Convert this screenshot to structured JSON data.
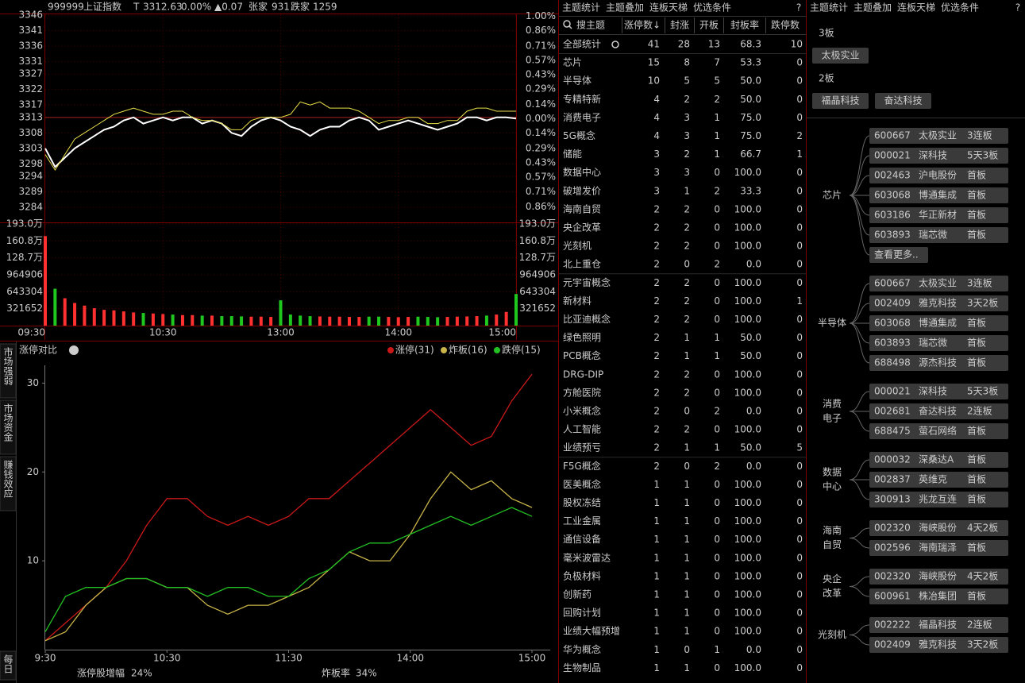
{
  "quote_header": {
    "code": "999999",
    "name": "上证指数",
    "flag": "T",
    "price": "3312.63",
    "change_pct": "0.00%",
    "change": "▲0.07",
    "up_label": "张家",
    "up_count": "931",
    "down_label": "跌家",
    "down_count": "1259"
  },
  "intraday": {
    "type": "line",
    "x": [
      0,
      5,
      10,
      15,
      20,
      25,
      30,
      35,
      40,
      45,
      50,
      55,
      60,
      65,
      70,
      75,
      80,
      85,
      90,
      95,
      100,
      105,
      110,
      115,
      120,
      125,
      130,
      135,
      140,
      145,
      150,
      155,
      160,
      165,
      170,
      175,
      180,
      185,
      190,
      195,
      200,
      205,
      210,
      215,
      220,
      225,
      230,
      235,
      240
    ],
    "xlim": [
      0,
      240
    ],
    "xticks": [
      {
        "value": 0,
        "label": "09:30"
      },
      {
        "value": 60,
        "label": "10:30"
      },
      {
        "value": 120,
        "label": "13:00"
      },
      {
        "value": 180,
        "label": "14:00"
      },
      {
        "value": 240,
        "label": "15:00"
      }
    ],
    "ylim": [
      3279.1,
      3346.3
    ],
    "yticks": [
      3346,
      3341,
      3336,
      3331,
      3327,
      3322,
      3317,
      3313,
      3308,
      3303,
      3298,
      3294,
      3289,
      3284
    ],
    "y2lim": [
      -1.01,
      1.02
    ],
    "y2ticks": [
      {
        "value": 1,
        "label": "1.00%"
      },
      {
        "value": 0.86,
        "label": "0.86%"
      },
      {
        "value": 0.71,
        "label": "0.71%"
      },
      {
        "value": 0.57,
        "label": "0.57%"
      },
      {
        "value": 0.43,
        "label": "0.43%"
      },
      {
        "value": 0.29,
        "label": "0.29%"
      },
      {
        "value": 0.14,
        "label": "0.14%"
      },
      {
        "value": 0,
        "label": "0.00%"
      },
      {
        "value": -0.14,
        "label": "0.14%"
      },
      {
        "value": -0.29,
        "label": "0.29%"
      },
      {
        "value": -0.43,
        "label": "0.43%"
      },
      {
        "value": -0.57,
        "label": "0.57%"
      },
      {
        "value": -0.71,
        "label": "0.71%"
      },
      {
        "value": -0.86,
        "label": "0.86%"
      }
    ],
    "series": [
      {
        "color": "#ffffff",
        "values": [
          3303,
          3297,
          3300,
          3303,
          3305,
          3307,
          3309,
          3310,
          3312,
          3313,
          3311,
          3312,
          3313,
          3312,
          3313,
          3313,
          3311,
          3312,
          3311,
          3308,
          3307,
          3310,
          3312,
          3313,
          3312,
          3310,
          3309,
          3307,
          3309,
          3310,
          3310,
          3312,
          3313,
          3312,
          3309,
          3310,
          3311,
          3312,
          3311,
          3310,
          3309,
          3310,
          3311,
          3313,
          3313,
          3312,
          3313,
          3313,
          3312.63
        ]
      },
      {
        "color": "#e8e04a",
        "values": [
          3301,
          3296,
          3301,
          3306,
          3308,
          3310,
          3312,
          3314,
          3315,
          3316,
          3315,
          3314,
          3314,
          3315,
          3315,
          3313,
          3312,
          3312,
          3311,
          3309,
          3309,
          3312,
          3313,
          3313,
          3313,
          3314,
          3318,
          3317,
          3318,
          3316,
          3316,
          3316,
          3315,
          3313,
          3311,
          3312,
          3312,
          3313,
          3313,
          3311,
          3311,
          3312,
          3312,
          3315,
          3316,
          3316,
          3315,
          3315,
          3315
        ]
      }
    ],
    "volume": {
      "type": "bar",
      "ylim": [
        0,
        1930000
      ],
      "yticks": [
        {
          "value": 1930000,
          "label": "193.0万"
        },
        {
          "value": 1608000,
          "label": "160.8万"
        },
        {
          "value": 1287000,
          "label": "128.7万"
        },
        964906,
        643304,
        321652
      ],
      "values": [
        1700000,
        700000,
        520000,
        430000,
        380000,
        330000,
        300000,
        290000,
        270000,
        250000,
        240000,
        230000,
        220000,
        210000,
        200000,
        200000,
        190000,
        190000,
        180000,
        180000,
        175000,
        170000,
        170000,
        165000,
        480000,
        210000,
        190000,
        180000,
        175000,
        170000,
        170000,
        165000,
        165000,
        170000,
        170000,
        165000,
        160000,
        165000,
        170000,
        165000,
        160000,
        165000,
        170000,
        175000,
        180000,
        190000,
        210000,
        260000,
        600000
      ],
      "up_color": "#ff3030",
      "down_color": "#1ec81e"
    }
  },
  "side_tabs": [
    "市场强弱",
    "市场资金",
    "赚钱效应",
    "每日"
  ],
  "side_tab_active": 2,
  "limit_chart": {
    "type": "line",
    "title": "涨停对比",
    "info_icon": "i",
    "x": [
      0,
      10,
      20,
      30,
      40,
      50,
      60,
      70,
      80,
      90,
      100,
      110,
      120,
      130,
      140,
      150,
      160,
      170,
      180,
      190,
      200,
      210,
      220,
      230,
      240
    ],
    "xlim": [
      0,
      240
    ],
    "xticks": [
      {
        "value": 0,
        "label": "9:30"
      },
      {
        "value": 60,
        "label": "10:30"
      },
      {
        "value": 120,
        "label": "11:30"
      },
      {
        "value": 180,
        "label": "14:00"
      },
      {
        "value": 240,
        "label": "15:00"
      }
    ],
    "ylim": [
      0,
      32
    ],
    "yticks": [
      10,
      20,
      30
    ],
    "series": [
      {
        "name": "涨停(31)",
        "color": "#c81818",
        "values": [
          1,
          3,
          5,
          7,
          10,
          14,
          17,
          17,
          15,
          14,
          15,
          14,
          15,
          17,
          17,
          19,
          21,
          23,
          25,
          27,
          25,
          23,
          24,
          28,
          31
        ]
      },
      {
        "name": "炸板(16)",
        "color": "#c8b448",
        "values": [
          1,
          2,
          5,
          7,
          8,
          8,
          7,
          7,
          5,
          4,
          5,
          5,
          6,
          7,
          9,
          11,
          10,
          10,
          13,
          17,
          20,
          18,
          19,
          17,
          16
        ]
      },
      {
        "name": "跌停(15)",
        "color": "#22c022",
        "values": [
          2,
          6,
          7,
          7,
          8,
          8,
          7,
          7,
          6,
          7,
          7,
          6,
          6,
          8,
          9,
          11,
          12,
          12,
          13,
          14,
          15,
          14,
          15,
          16,
          15
        ]
      }
    ],
    "footer": [
      {
        "label": "涨停股增幅",
        "value": "24%",
        "color": "#ff3030"
      },
      {
        "label": "炸板率",
        "value": "34%",
        "color": "#22d022"
      }
    ]
  },
  "theme_panel": {
    "tabs": [
      "主题统计",
      "主题叠加",
      "连板天梯",
      "优选条件"
    ],
    "active_tab": 0,
    "help": "?",
    "search": "搜主题",
    "columns": [
      "涨停数↓",
      "封涨",
      "开板",
      "封板率",
      "跌停数"
    ],
    "rows": [
      [
        "全部统计",
        41,
        28,
        13,
        "68.3",
        10
      ],
      [
        "芯片",
        15,
        8,
        7,
        "53.3",
        0
      ],
      [
        "半导体",
        10,
        5,
        5,
        "50.0",
        0
      ],
      [
        "专精特新",
        4,
        2,
        2,
        "50.0",
        0
      ],
      [
        "消费电子",
        4,
        3,
        1,
        "75.0",
        0
      ],
      [
        "5G概念",
        4,
        3,
        1,
        "75.0",
        2
      ],
      [
        "储能",
        3,
        2,
        1,
        "66.7",
        1
      ],
      [
        "数据中心",
        3,
        3,
        0,
        "100.0",
        0
      ],
      [
        "破增发价",
        3,
        1,
        2,
        "33.3",
        0
      ],
      [
        "海南自贸",
        2,
        2,
        0,
        "100.0",
        0
      ],
      [
        "央企改革",
        2,
        2,
        0,
        "100.0",
        0
      ],
      [
        "光刻机",
        2,
        2,
        0,
        "100.0",
        0
      ],
      [
        "北上重仓",
        2,
        0,
        2,
        "0.0",
        0
      ],
      [
        "元宇宙概念",
        2,
        2,
        0,
        "100.0",
        0
      ],
      [
        "新材料",
        2,
        2,
        0,
        "100.0",
        1
      ],
      [
        "比亚迪概念",
        2,
        2,
        0,
        "100.0",
        0
      ],
      [
        "绿色照明",
        2,
        1,
        1,
        "50.0",
        0
      ],
      [
        "PCB概念",
        2,
        1,
        1,
        "50.0",
        0
      ],
      [
        "DRG-DIP",
        2,
        2,
        0,
        "100.0",
        0
      ],
      [
        "方舱医院",
        2,
        2,
        0,
        "100.0",
        0
      ],
      [
        "小米概念",
        2,
        0,
        2,
        "0.0",
        0
      ],
      [
        "人工智能",
        2,
        2,
        0,
        "100.0",
        0
      ],
      [
        "业绩预亏",
        2,
        1,
        1,
        "50.0",
        5
      ],
      [
        "F5G概念",
        2,
        0,
        2,
        "0.0",
        0
      ],
      [
        "医美概念",
        1,
        1,
        0,
        "100.0",
        0
      ],
      [
        "股权冻结",
        1,
        1,
        0,
        "100.0",
        0
      ],
      [
        "工业金属",
        1,
        1,
        0,
        "100.0",
        0
      ],
      [
        "通信设备",
        1,
        1,
        0,
        "100.0",
        0
      ],
      [
        "毫米波雷达",
        1,
        1,
        0,
        "100.0",
        0
      ],
      [
        "负极材料",
        1,
        1,
        0,
        "100.0",
        0
      ],
      [
        "创新药",
        1,
        1,
        0,
        "100.0",
        0
      ],
      [
        "回购计划",
        1,
        1,
        0,
        "100.0",
        0
      ],
      [
        "业绩大幅预增",
        1,
        1,
        0,
        "100.0",
        0
      ],
      [
        "华为概念",
        1,
        0,
        1,
        "0.0",
        0
      ],
      [
        "生物制品",
        1,
        1,
        0,
        "100.0",
        0
      ]
    ]
  },
  "ladder_panel": {
    "tabs": [
      "主题统计",
      "主题叠加",
      "连板天梯",
      "优选条件"
    ],
    "active_tab": 2,
    "help": "?",
    "levels": [
      {
        "label": "3板",
        "stocks": [
          "太极实业"
        ]
      },
      {
        "label": "2板",
        "stocks": [
          "福晶科技",
          "奋达科技"
        ]
      }
    ],
    "groups": [
      {
        "label_lines": [
          "芯片"
        ],
        "stocks": [
          [
            "600667",
            "太极实业",
            "3连板"
          ],
          [
            "000021",
            "深科技",
            "5天3板"
          ],
          [
            "002463",
            "沪电股份",
            "首板"
          ],
          [
            "603068",
            "博通集成",
            "首板"
          ],
          [
            "603186",
            "华正新材",
            "首板"
          ],
          [
            "603893",
            "瑞芯微",
            "首板"
          ]
        ],
        "more": "查看更多.."
      },
      {
        "label_lines": [
          "半导体"
        ],
        "stocks": [
          [
            "600667",
            "太极实业",
            "3连板"
          ],
          [
            "002409",
            "雅克科技",
            "3天2板"
          ],
          [
            "603068",
            "博通集成",
            "首板"
          ],
          [
            "603893",
            "瑞芯微",
            "首板"
          ],
          [
            "688498",
            "源杰科技",
            "首板"
          ]
        ]
      },
      {
        "label_lines": [
          "消费",
          "电子"
        ],
        "stocks": [
          [
            "000021",
            "深科技",
            "5天3板"
          ],
          [
            "002681",
            "奋达科技",
            "2连板"
          ],
          [
            "688475",
            "萤石网络",
            "首板"
          ]
        ]
      },
      {
        "label_lines": [
          "数据",
          "中心"
        ],
        "stocks": [
          [
            "000032",
            "深桑达A",
            "首板"
          ],
          [
            "002837",
            "英维克",
            "首板"
          ],
          [
            "300913",
            "兆龙互连",
            "首板"
          ]
        ]
      },
      {
        "label_lines": [
          "海南",
          "自贸"
        ],
        "stocks": [
          [
            "002320",
            "海峡股份",
            "4天2板"
          ],
          [
            "002596",
            "海南瑞泽",
            "首板"
          ]
        ]
      },
      {
        "label_lines": [
          "央企",
          "改革"
        ],
        "stocks": [
          [
            "002320",
            "海峡股份",
            "4天2板"
          ],
          [
            "600961",
            "株冶集团",
            "首板"
          ]
        ]
      },
      {
        "label_lines": [
          "光刻机"
        ],
        "stocks": [
          [
            "002222",
            "福晶科技",
            "2连板"
          ],
          [
            "002409",
            "雅克科技",
            "3天2板"
          ]
        ]
      }
    ]
  }
}
